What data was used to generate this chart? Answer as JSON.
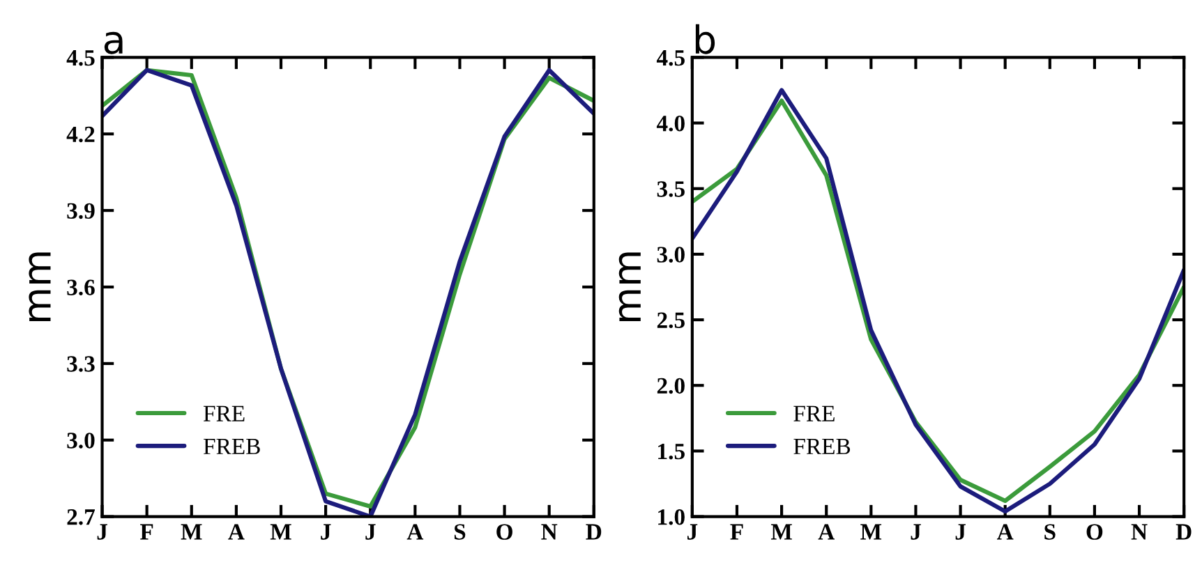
{
  "chart_data": [
    {
      "type": "line",
      "title": "a",
      "ylabel": "mm",
      "categories": [
        "J",
        "F",
        "M",
        "A",
        "M",
        "J",
        "J",
        "A",
        "S",
        "O",
        "N",
        "D"
      ],
      "ylim": [
        2.7,
        4.5
      ],
      "yticks": [
        2.7,
        {
          "value": 3,
          "label": "3.0"
        },
        3.3,
        3.6,
        3.9,
        4.2,
        4.5
      ],
      "legend": "bottom left",
      "grid": false,
      "series": [
        {
          "name": "FRE",
          "color": "#3b9b3b",
          "values": [
            4.31,
            4.45,
            4.43,
            3.95,
            3.28,
            2.79,
            2.74,
            3.05,
            3.65,
            4.18,
            4.42,
            4.33
          ]
        },
        {
          "name": "FREB",
          "color": "#1c1c7c",
          "values": [
            4.27,
            4.45,
            4.39,
            3.92,
            3.28,
            2.76,
            2.7,
            3.1,
            3.7,
            4.19,
            4.45,
            4.28
          ]
        }
      ]
    },
    {
      "type": "line",
      "title": "b",
      "ylabel": "mm",
      "categories": [
        "J",
        "F",
        "M",
        "A",
        "M",
        "J",
        "J",
        "A",
        "S",
        "O",
        "N",
        "D"
      ],
      "ylim": [
        1.0,
        4.5
      ],
      "yticks": [
        {
          "value": 1,
          "label": "1.0"
        },
        1.5,
        {
          "value": 2,
          "label": "2.0"
        },
        2.5,
        {
          "value": 3,
          "label": "3.0"
        },
        3.5,
        {
          "value": 4,
          "label": "4.0"
        },
        4.5
      ],
      "legend": "bottom left",
      "grid": false,
      "series": [
        {
          "name": "FRE",
          "color": "#3b9b3b",
          "values": [
            3.4,
            3.65,
            4.17,
            3.6,
            2.35,
            1.72,
            1.28,
            1.12,
            1.38,
            1.65,
            2.08,
            2.75
          ]
        },
        {
          "name": "FREB",
          "color": "#1c1c7c",
          "values": [
            3.12,
            3.63,
            4.25,
            3.73,
            2.42,
            1.7,
            1.23,
            1.04,
            1.25,
            1.55,
            2.05,
            2.88
          ]
        }
      ]
    }
  ]
}
